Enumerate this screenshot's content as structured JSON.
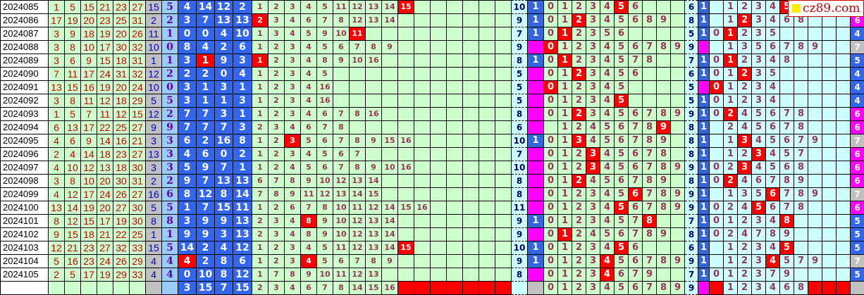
{
  "colors": {
    "magenta": "#ff00ff",
    "blue": "#3366ee",
    "gray": "#c0c0c0"
  },
  "watermark": "cz89.com",
  "rows": [
    {
      "issue": "2024085",
      "nums": [
        "1",
        "5",
        "15",
        "21",
        "23",
        "27"
      ],
      "gray": "15",
      "mod": "5",
      "blue": [
        "4",
        "14",
        "12",
        "2"
      ],
      "blue_hit": -1,
      "a": [
        "1",
        "2",
        "3",
        "4",
        "5",
        "11",
        "12",
        "13",
        "14",
        "15"
      ],
      "a_hit": 9,
      "b_count": "10",
      "b_flag": "1",
      "b": [
        "0",
        "1",
        "2",
        "3",
        "4",
        "5",
        "6",
        "",
        "",
        ""
      ],
      "b_hit": 5,
      "c_count": "6",
      "c_flag": "1",
      "c": [
        "",
        "1",
        "2",
        "3",
        "4",
        "5",
        "",
        "",
        "",
        ""
      ],
      "c_hit": 5,
      "last": "",
      "last_color": "magenta"
    },
    {
      "issue": "2024086",
      "nums": [
        "17",
        "19",
        "20",
        "23",
        "25",
        "31"
      ],
      "gray": "2",
      "mod": "2",
      "blue": [
        "3",
        "7",
        "13",
        "13"
      ],
      "blue_hit": -1,
      "a": [
        "2",
        "3",
        "4",
        "6",
        "7",
        "8",
        "12",
        "13",
        "14"
      ],
      "a_hit": 0,
      "b_count": "9",
      "b_flag": "1",
      "b": [
        "0",
        "1",
        "2",
        "3",
        "4",
        "5",
        "6",
        "8",
        "9",
        ""
      ],
      "b_hit": 2,
      "c_count": "8",
      "c_flag": "1",
      "c": [
        "",
        "1",
        "2",
        "3",
        "4",
        "6",
        "8",
        "",
        "",
        ""
      ],
      "c_hit": 2,
      "last": "6",
      "last_color": "magenta"
    },
    {
      "issue": "2024087",
      "nums": [
        "3",
        "9",
        "18",
        "19",
        "20",
        "26"
      ],
      "gray": "11",
      "mod": "1",
      "blue": [
        "0",
        "0",
        "4",
        "10"
      ],
      "blue_hit": -1,
      "a": [
        "1",
        "3",
        "4",
        "5",
        "9",
        "10",
        "11"
      ],
      "a_hit": 6,
      "b_count": "7",
      "b_flag": "1",
      "b": [
        "0",
        "1",
        "2",
        "3",
        "5",
        "6",
        "",
        "",
        "",
        ""
      ],
      "b_hit": 1,
      "c_count": "5",
      "c_flag": "1",
      "c": [
        "0",
        "1",
        "2",
        "3",
        "5",
        "",
        "",
        "",
        "",
        ""
      ],
      "c_hit": 1,
      "last": "4",
      "last_color": "blue"
    },
    {
      "issue": "2024088",
      "nums": [
        "3",
        "8",
        "10",
        "17",
        "30",
        "32"
      ],
      "gray": "10",
      "mod": "0",
      "blue": [
        "8",
        "4",
        "2",
        "6"
      ],
      "blue_hit": -1,
      "a": [
        "1",
        "2",
        "3",
        "4",
        "5",
        "6",
        "7",
        "8",
        "9"
      ],
      "a_hit": -1,
      "b_count": "9",
      "b_flag": "",
      "b": [
        "0",
        "1",
        "2",
        "3",
        "4",
        "5",
        "6",
        "7",
        "8",
        "9"
      ],
      "b_hit": 0,
      "c_count": "9",
      "c_flag": "",
      "c": [
        "",
        "1",
        "3",
        "5",
        "6",
        "7",
        "8",
        "9",
        "",
        ""
      ],
      "c_hit": -1,
      "last": "7",
      "last_color": "gray"
    },
    {
      "issue": "2024089",
      "nums": [
        "3",
        "6",
        "9",
        "15",
        "18",
        "31"
      ],
      "gray": "1",
      "mod": "1",
      "blue": [
        "3",
        "1",
        "9",
        "3"
      ],
      "blue_hit": 1,
      "a": [
        "1",
        "2",
        "3",
        "4",
        "8",
        "9",
        "10",
        "16"
      ],
      "a_hit": 0,
      "b_count": "8",
      "b_flag": "1",
      "b": [
        "0",
        "1",
        "2",
        "3",
        "4",
        "5",
        "7",
        "8",
        "",
        ""
      ],
      "b_hit": 1,
      "c_count": "7",
      "c_flag": "1",
      "c": [
        "0",
        "1",
        "2",
        "3",
        "4",
        "8",
        "",
        "",
        "",
        ""
      ],
      "c_hit": 1,
      "last": "5",
      "last_color": "blue"
    },
    {
      "issue": "2024090",
      "nums": [
        "7",
        "11",
        "17",
        "24",
        "31",
        "32"
      ],
      "gray": "12",
      "mod": "2",
      "blue": [
        "2",
        "2",
        "0",
        "4"
      ],
      "blue_hit": -1,
      "a": [
        "1",
        "2",
        "3",
        "4",
        "5"
      ],
      "a_hit": -1,
      "b_count": "5",
      "b_flag": "",
      "b": [
        "0",
        "1",
        "2",
        "3",
        "4",
        "5",
        "6",
        "",
        "",
        ""
      ],
      "b_hit": 2,
      "c_count": "6",
      "c_flag": "1",
      "c": [
        "0",
        "1",
        "2",
        "3",
        "5",
        "",
        "",
        "",
        "",
        ""
      ],
      "c_hit": 2,
      "last": "4",
      "last_color": "blue"
    },
    {
      "issue": "2024091",
      "nums": [
        "13",
        "15",
        "16",
        "19",
        "20",
        "24"
      ],
      "gray": "10",
      "mod": "0",
      "blue": [
        "3",
        "1",
        "3",
        "1"
      ],
      "blue_hit": -1,
      "a": [
        "1",
        "2",
        "3",
        "4",
        "16"
      ],
      "a_hit": -1,
      "b_count": "5",
      "b_flag": "",
      "b": [
        "0",
        "1",
        "2",
        "3",
        "4",
        "5",
        "",
        "",
        "",
        ""
      ],
      "b_hit": 0,
      "c_count": "5",
      "c_flag": "",
      "c": [
        "0",
        "1",
        "2",
        "3",
        "4",
        "",
        "",
        "",
        "",
        ""
      ],
      "c_hit": 0,
      "last": "4",
      "last_color": "blue"
    },
    {
      "issue": "2024092",
      "nums": [
        "3",
        "8",
        "11",
        "12",
        "18",
        "29"
      ],
      "gray": "5",
      "mod": "5",
      "blue": [
        "3",
        "1",
        "1",
        "3"
      ],
      "blue_hit": -1,
      "a": [
        "1",
        "2",
        "3",
        "4",
        "16"
      ],
      "a_hit": -1,
      "b_count": "5",
      "b_flag": "",
      "b": [
        "0",
        "1",
        "2",
        "3",
        "4",
        "5",
        "",
        "",
        "",
        ""
      ],
      "b_hit": 5,
      "c_count": "5",
      "c_flag": "1",
      "c": [
        "0",
        "1",
        "2",
        "3",
        "4",
        "",
        "",
        "",
        "",
        ""
      ],
      "c_hit": -1,
      "last": "4",
      "last_color": "blue"
    },
    {
      "issue": "2024093",
      "nums": [
        "1",
        "5",
        "7",
        "11",
        "12",
        "15"
      ],
      "gray": "12",
      "mod": "2",
      "blue": [
        "7",
        "7",
        "3",
        "1"
      ],
      "blue_hit": -1,
      "a": [
        "1",
        "2",
        "3",
        "4",
        "6",
        "7",
        "8",
        "16"
      ],
      "a_hit": -1,
      "b_count": "8",
      "b_flag": "",
      "b": [
        "0",
        "1",
        "2",
        "3",
        "4",
        "5",
        "6",
        "7",
        "8",
        "9"
      ],
      "b_hit": 2,
      "c_count": "9",
      "c_flag": "1",
      "c": [
        "0",
        "2",
        "4",
        "5",
        "6",
        "7",
        "8",
        "",
        "",
        ""
      ],
      "c_hit": 1,
      "last": "6",
      "last_color": "magenta"
    },
    {
      "issue": "2024094",
      "nums": [
        "6",
        "13",
        "17",
        "22",
        "25",
        "27"
      ],
      "gray": "9",
      "mod": "9",
      "blue": [
        "7",
        "7",
        "7",
        "3"
      ],
      "blue_hit": -1,
      "a": [
        "2",
        "3",
        "4",
        "6",
        "7",
        "8"
      ],
      "a_hit": -1,
      "b_count": "6",
      "b_flag": "",
      "b": [
        "",
        "1",
        "2",
        "4",
        "5",
        "6",
        "7",
        "8",
        "9",
        ""
      ],
      "b_hit": 8,
      "c_count": "8",
      "c_flag": "1",
      "c": [
        "",
        "2",
        "4",
        "5",
        "6",
        "7",
        "8",
        "",
        "",
        ""
      ],
      "c_hit": -1,
      "last": "6",
      "last_color": "magenta"
    },
    {
      "issue": "2024095",
      "nums": [
        "4",
        "6",
        "9",
        "14",
        "16",
        "21"
      ],
      "gray": "3",
      "mod": "3",
      "blue": [
        "6",
        "2",
        "16",
        "8"
      ],
      "blue_hit": -1,
      "a": [
        "1",
        "2",
        "3",
        "5",
        "6",
        "7",
        "8",
        "9",
        "15",
        "16"
      ],
      "a_hit": 2,
      "b_count": "10",
      "b_flag": "1",
      "b": [
        "0",
        "1",
        "3",
        "4",
        "5",
        "6",
        "7",
        "8",
        "9",
        ""
      ],
      "b_hit": 2,
      "c_count": "8",
      "c_flag": "1",
      "c": [
        "",
        "1",
        "3",
        "4",
        "5",
        "6",
        "7",
        "9",
        "",
        ""
      ],
      "c_hit": 2,
      "last": "7",
      "last_color": "gray"
    },
    {
      "issue": "2024096",
      "nums": [
        "2",
        "4",
        "14",
        "18",
        "23",
        "27"
      ],
      "gray": "13",
      "mod": "3",
      "blue": [
        "4",
        "6",
        "0",
        "2"
      ],
      "blue_hit": -1,
      "a": [
        "1",
        "2",
        "3",
        "4",
        "5",
        "6",
        "7"
      ],
      "a_hit": -1,
      "b_count": "7",
      "b_flag": "",
      "b": [
        "0",
        "1",
        "2",
        "3",
        "4",
        "5",
        "6",
        "7",
        "8",
        ""
      ],
      "b_hit": 3,
      "c_count": "8",
      "c_flag": "1",
      "c": [
        "",
        "1",
        "2",
        "3",
        "4",
        "5",
        "7",
        "",
        "",
        ""
      ],
      "c_hit": 3,
      "last": "6",
      "last_color": "magenta"
    },
    {
      "issue": "2024097",
      "nums": [
        "4",
        "10",
        "12",
        "13",
        "18",
        "30"
      ],
      "gray": "3",
      "mod": "3",
      "blue": [
        "5",
        "9",
        "7",
        "1"
      ],
      "blue_hit": -1,
      "a": [
        "1",
        "2",
        "4",
        "5",
        "6",
        "7",
        "8",
        "9",
        "10",
        "16"
      ],
      "a_hit": -1,
      "b_count": "10",
      "b_flag": "",
      "b": [
        "0",
        "1",
        "2",
        "3",
        "4",
        "5",
        "6",
        "7",
        "8",
        "9"
      ],
      "b_hit": 3,
      "c_count": "9",
      "c_flag": "1",
      "c": [
        "0",
        "2",
        "3",
        "4",
        "5",
        "6",
        "8",
        "",
        "",
        ""
      ],
      "c_hit": 2,
      "last": "6",
      "last_color": "magenta"
    },
    {
      "issue": "2024098",
      "nums": [
        "3",
        "8",
        "10",
        "20",
        "30",
        "31"
      ],
      "gray": "2",
      "mod": "2",
      "blue": [
        "9",
        "7",
        "13",
        "13"
      ],
      "blue_hit": -1,
      "a": [
        "6",
        "7",
        "8",
        "9",
        "10",
        "12",
        "13",
        "14"
      ],
      "a_hit": -1,
      "b_count": "8",
      "b_flag": "",
      "b": [
        "0",
        "1",
        "2",
        "4",
        "5",
        "6",
        "7",
        "8",
        "9",
        ""
      ],
      "b_hit": 2,
      "c_count": "8",
      "c_flag": "1",
      "c": [
        "0",
        "2",
        "4",
        "6",
        "7",
        "8",
        "9",
        "",
        "",
        ""
      ],
      "c_hit": 1,
      "last": "6",
      "last_color": "magenta"
    },
    {
      "issue": "2024099",
      "nums": [
        "4",
        "12",
        "17",
        "24",
        "26",
        "27"
      ],
      "gray": "16",
      "mod": "6",
      "blue": [
        "8",
        "12",
        "8",
        "14"
      ],
      "blue_hit": -1,
      "a": [
        "7",
        "8",
        "9",
        "11",
        "12",
        "13",
        "14",
        "15"
      ],
      "a_hit": -1,
      "b_count": "8",
      "b_flag": "",
      "b": [
        "0",
        "1",
        "2",
        "3",
        "4",
        "5",
        "6",
        "7",
        "8",
        "9"
      ],
      "b_hit": 6,
      "c_count": "9",
      "c_flag": "1",
      "c": [
        "",
        "1",
        "3",
        "5",
        "6",
        "7",
        "8",
        "9",
        "",
        ""
      ],
      "c_hit": 4,
      "last": "7",
      "last_color": "gray"
    },
    {
      "issue": "2024100",
      "nums": [
        "13",
        "14",
        "19",
        "20",
        "27",
        "30"
      ],
      "gray": "5",
      "mod": "5",
      "blue": [
        "1",
        "7",
        "15",
        "11"
      ],
      "blue_hit": -1,
      "a": [
        "1",
        "2",
        "6",
        "7",
        "8",
        "10",
        "11",
        "12",
        "14",
        "15",
        "16"
      ],
      "a_hit": -1,
      "b_count": "11",
      "b_flag": "",
      "b": [
        "0",
        "1",
        "2",
        "3",
        "4",
        "5",
        "6",
        "7",
        "8",
        "9"
      ],
      "b_hit": 5,
      "c_count": "9",
      "c_flag": "1",
      "c": [
        "0",
        "2",
        "4",
        "5",
        "6",
        "7",
        "8",
        "",
        "",
        ""
      ],
      "c_hit": 3,
      "last": "6",
      "last_color": "magenta"
    },
    {
      "issue": "2024101",
      "nums": [
        "8",
        "12",
        "15",
        "17",
        "19",
        "30"
      ],
      "gray": "8",
      "mod": "8",
      "blue": [
        "3",
        "9",
        "9",
        "13"
      ],
      "blue_hit": -1,
      "a": [
        "2",
        "3",
        "4",
        "8",
        "9",
        "10",
        "12",
        "13",
        "14"
      ],
      "a_hit": 3,
      "b_count": "9",
      "b_flag": "1",
      "b": [
        "0",
        "1",
        "2",
        "3",
        "4",
        "5",
        "7",
        "8",
        "",
        ""
      ],
      "b_hit": 7,
      "c_count": "7",
      "c_flag": "1",
      "c": [
        "0",
        "1",
        "2",
        "3",
        "4",
        "8",
        "",
        "",
        "",
        ""
      ],
      "c_hit": 5,
      "last": "5",
      "last_color": "blue"
    },
    {
      "issue": "2024102",
      "nums": [
        "9",
        "15",
        "18",
        "21",
        "22",
        "25"
      ],
      "gray": "1",
      "mod": "1",
      "blue": [
        "9",
        "9",
        "3",
        "13"
      ],
      "blue_hit": -1,
      "a": [
        "2",
        "3",
        "4",
        "8",
        "9",
        "10",
        "12",
        "13",
        "14"
      ],
      "a_hit": -1,
      "b_count": "9",
      "b_flag": "",
      "b": [
        "0",
        "1",
        "2",
        "4",
        "5",
        "6",
        "7",
        "8",
        "9",
        ""
      ],
      "b_hit": 1,
      "c_count": "8",
      "c_flag": "1",
      "c": [
        "0",
        "2",
        "4",
        "7",
        "8",
        "9",
        "",
        "",
        "",
        ""
      ],
      "c_hit": -1,
      "last": "5",
      "last_color": "blue"
    },
    {
      "issue": "2024103",
      "nums": [
        "12",
        "21",
        "23",
        "27",
        "32",
        "33"
      ],
      "gray": "15",
      "mod": "5",
      "blue": [
        "14",
        "2",
        "4",
        "12"
      ],
      "blue_hit": -1,
      "a": [
        "1",
        "2",
        "3",
        "4",
        "5",
        "11",
        "12",
        "13",
        "14",
        "15"
      ],
      "a_hit": 9,
      "b_count": "10",
      "b_flag": "1",
      "b": [
        "0",
        "1",
        "2",
        "3",
        "4",
        "5",
        "6",
        "",
        "",
        ""
      ],
      "b_hit": 5,
      "c_count": "6",
      "c_flag": "1",
      "c": [
        "",
        "1",
        "2",
        "3",
        "4",
        "5",
        "",
        "",
        "",
        ""
      ],
      "c_hit": 5,
      "last": "5",
      "last_color": "blue"
    },
    {
      "issue": "2024104",
      "nums": [
        "5",
        "16",
        "23",
        "24",
        "26",
        "29"
      ],
      "gray": "4",
      "mod": "4",
      "blue": [
        "4",
        "2",
        "8",
        "6"
      ],
      "blue_hit": 0,
      "a": [
        "1",
        "2",
        "3",
        "4",
        "5",
        "6",
        "7",
        "8",
        "9"
      ],
      "a_hit": 3,
      "b_count": "9",
      "b_flag": "1",
      "b": [
        "0",
        "1",
        "2",
        "3",
        "4",
        "5",
        "6",
        "7",
        "8",
        "9"
      ],
      "b_hit": 4,
      "c_count": "9",
      "c_flag": "1",
      "c": [
        "",
        "1",
        "2",
        "3",
        "4",
        "5",
        "7",
        "9",
        "",
        ""
      ],
      "c_hit": 4,
      "last": "7",
      "last_color": "gray"
    },
    {
      "issue": "2024105",
      "nums": [
        "2",
        "5",
        "17",
        "19",
        "29",
        "33"
      ],
      "gray": "4",
      "mod": "4",
      "blue": [
        "0",
        "10",
        "8",
        "12"
      ],
      "blue_hit": -1,
      "a": [
        "1",
        "7",
        "8",
        "9",
        "10",
        "11",
        "12",
        "13"
      ],
      "a_hit": -1,
      "b_count": "8",
      "b_flag": "",
      "b": [
        "0",
        "1",
        "2",
        "3",
        "4",
        "6",
        "7",
        "9",
        "",
        ""
      ],
      "b_hit": 4,
      "c_count": "7",
      "c_flag": "1",
      "c": [
        "0",
        "1",
        "2",
        "3",
        "7",
        "9",
        "",
        "",
        "",
        ""
      ],
      "c_hit": -1,
      "last": "5",
      "last_color": "blue"
    }
  ],
  "footer": {
    "blue": [
      "3",
      "15",
      "7",
      "15"
    ],
    "a": [
      "2",
      "3",
      "4",
      "6",
      "7",
      "8",
      "14",
      "15",
      "16"
    ],
    "a_red_cells": [
      9,
      10,
      11,
      12,
      13,
      14,
      15
    ],
    "b": [
      "0",
      "1",
      "2",
      "3",
      "4",
      "5",
      "6",
      "7",
      "8",
      "9"
    ],
    "c_count": "9",
    "c": [
      "",
      "1",
      "2",
      "3",
      "4",
      "6",
      "8",
      "",
      "",
      ""
    ],
    "c_red_cells": [
      0,
      7,
      8,
      9
    ]
  }
}
